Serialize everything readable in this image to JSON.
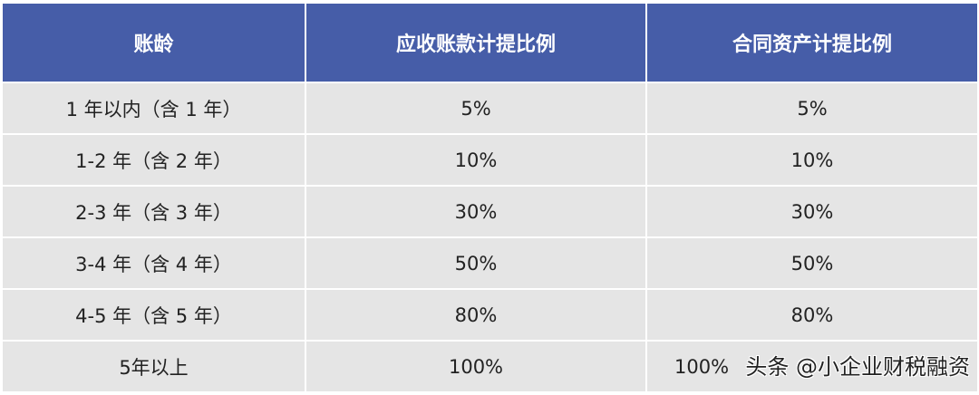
{
  "table": {
    "headers": [
      "账龄",
      "应收账款计提比例",
      "合同资产计提比例"
    ],
    "rows": [
      [
        "1 年以内（含 1 年）",
        "5%",
        "5%"
      ],
      [
        "1-2 年（含 2 年）",
        "10%",
        "10%"
      ],
      [
        "2-3 年（含 3 年）",
        "30%",
        "30%"
      ],
      [
        "3-4 年（含 4 年）",
        "50%",
        "50%"
      ],
      [
        "4-5 年（含 5 年）",
        "80%",
        "80%"
      ],
      [
        "5年以上",
        "100%",
        "100%"
      ]
    ],
    "header_color": "#465da8",
    "row_color": "#e5e5e5"
  },
  "watermark": "头条 @小企业财税融资"
}
